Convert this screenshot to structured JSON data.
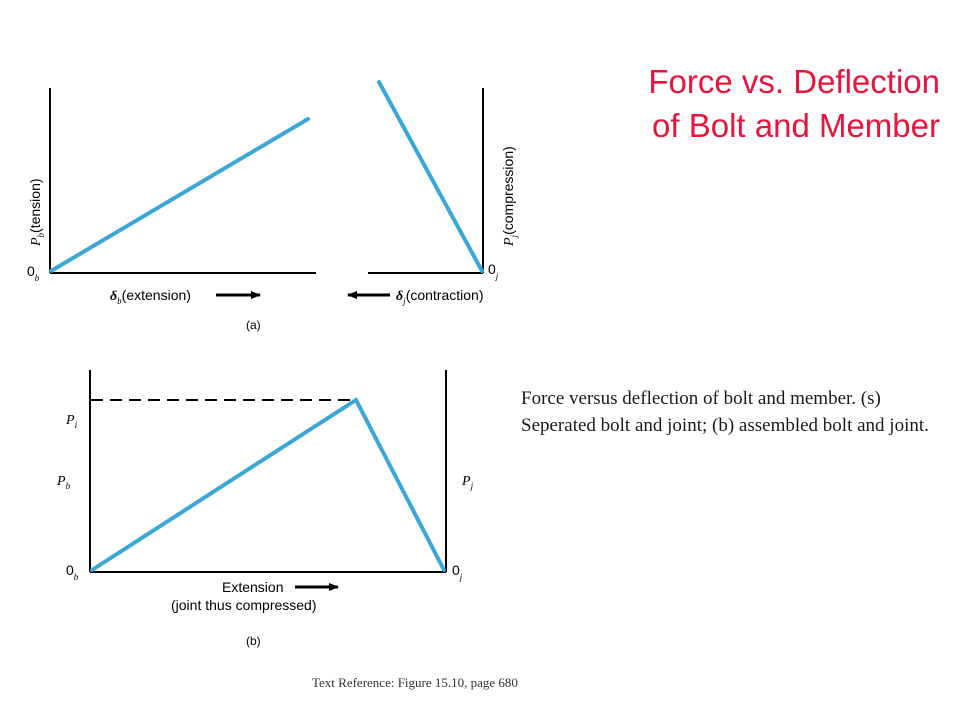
{
  "title": {
    "line1": "Force vs. Deflection",
    "line2": "of Bolt and Member"
  },
  "caption": "Force versus deflection of bolt and member. (s) Seperated bolt and joint; (b) assembled bolt and joint.",
  "text_reference": "Text Reference: Figure 15.10, page 680",
  "figure_a": {
    "label": "(a)",
    "left": {
      "origin_main": "0",
      "origin_sub": "b",
      "y_symbol": "P",
      "y_sub": "b",
      "y_label": "(tension)",
      "x_symbol": "δ",
      "x_sub": "b",
      "x_label": "(extension)"
    },
    "right": {
      "origin_main": "0",
      "origin_sub": "j",
      "y_symbol": "P",
      "y_sub": "j",
      "y_label": "(compression)",
      "x_symbol": "δ",
      "x_sub": "j",
      "x_label": "(contraction)"
    }
  },
  "figure_b": {
    "label": "(b)",
    "pi_symbol": "P",
    "pi_sub": "i",
    "pb_symbol": "P",
    "pb_sub": "b",
    "pj_symbol": "P",
    "pj_sub": "j",
    "origin_left_main": "0",
    "origin_left_sub": "b",
    "origin_right_main": "0",
    "origin_right_sub": "j",
    "x_label_line1": "Extension",
    "x_label_line2": "(joint thus compressed)"
  },
  "colors": {
    "title": "#e8143c",
    "curve": "#3aa7d6"
  }
}
